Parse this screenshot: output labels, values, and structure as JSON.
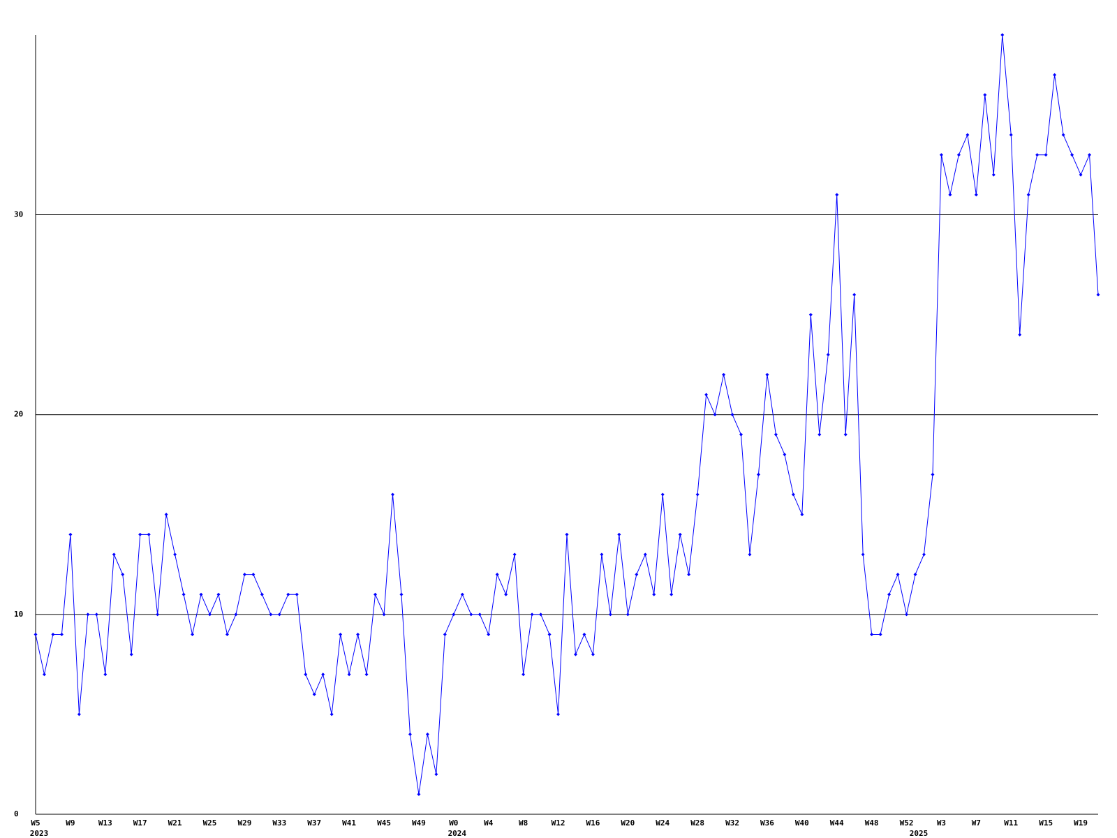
{
  "chart_data": {
    "type": "line",
    "color": "#0000ff",
    "grid": true,
    "ylim": [
      0,
      39
    ],
    "yticks": [
      0,
      10,
      20,
      30
    ],
    "categories": [
      "W5",
      null,
      null,
      null,
      "W9",
      null,
      null,
      null,
      "W13",
      null,
      null,
      null,
      "W17",
      null,
      null,
      null,
      "W21",
      null,
      null,
      null,
      "W25",
      null,
      null,
      null,
      "W29",
      null,
      null,
      null,
      "W33",
      null,
      null,
      null,
      "W37",
      null,
      null,
      null,
      "W41",
      null,
      null,
      null,
      "W45",
      null,
      null,
      null,
      "W49",
      null,
      null,
      null,
      "W0",
      null,
      null,
      null,
      "W4",
      null,
      null,
      null,
      "W8",
      null,
      null,
      null,
      "W12",
      null,
      null,
      null,
      "W16",
      null,
      null,
      null,
      "W20",
      null,
      null,
      null,
      "W24",
      null,
      null,
      null,
      "W28",
      null,
      null,
      null,
      "W32",
      null,
      null,
      null,
      "W36",
      null,
      null,
      null,
      "W40",
      null,
      null,
      null,
      "W44",
      null,
      null,
      null,
      "W48",
      null,
      null,
      null,
      "W52",
      null,
      null,
      null,
      "W3",
      null,
      null,
      null,
      "W7",
      null,
      null,
      null,
      "W11",
      null,
      null,
      null,
      "W15",
      null,
      null,
      null,
      "W19",
      null,
      null
    ],
    "category_years": [
      "2023",
      null,
      null,
      null,
      null,
      null,
      null,
      null,
      null,
      null,
      null,
      null,
      null,
      null,
      null,
      null,
      null,
      null,
      null,
      null,
      null,
      null,
      null,
      null,
      null,
      null,
      null,
      null,
      null,
      null,
      null,
      null,
      null,
      null,
      null,
      null,
      null,
      null,
      null,
      null,
      null,
      null,
      null,
      null,
      null,
      null,
      null,
      null,
      "2024",
      null,
      null,
      null,
      null,
      null,
      null,
      null,
      null,
      null,
      null,
      null,
      null,
      null,
      null,
      null,
      null,
      null,
      null,
      null,
      null,
      null,
      null,
      null,
      null,
      null,
      null,
      null,
      null,
      null,
      null,
      null,
      null,
      null,
      null,
      null,
      null,
      null,
      null,
      null,
      null,
      null,
      null,
      null,
      null,
      null,
      null,
      null,
      null,
      null,
      null,
      null,
      null,
      "2025",
      null,
      null,
      null,
      null,
      null,
      null,
      null,
      null,
      null,
      null,
      null,
      null,
      null,
      null,
      null,
      null,
      null,
      null,
      null,
      null,
      null
    ],
    "values": [
      9,
      7,
      9,
      9,
      14,
      5,
      10,
      10,
      7,
      13,
      12,
      8,
      14,
      14,
      10,
      15,
      13,
      11,
      9,
      11,
      10,
      11,
      9,
      10,
      12,
      12,
      11,
      10,
      10,
      11,
      11,
      7,
      6,
      7,
      5,
      9,
      7,
      9,
      7,
      11,
      10,
      16,
      11,
      4,
      1,
      4,
      2,
      9,
      10,
      11,
      10,
      10,
      9,
      12,
      11,
      13,
      7,
      10,
      10,
      9,
      5,
      14,
      8,
      9,
      8,
      13,
      10,
      14,
      10,
      12,
      13,
      11,
      16,
      11,
      14,
      12,
      16,
      21,
      20,
      22,
      20,
      19,
      13,
      17,
      22,
      19,
      18,
      16,
      15,
      25,
      19,
      23,
      31,
      19,
      26,
      13,
      9,
      9,
      11,
      12,
      10,
      12,
      13,
      17,
      33,
      31,
      33,
      34,
      31,
      36,
      32,
      39,
      34,
      24,
      31,
      33,
      33,
      37,
      34,
      33,
      32,
      33,
      26
    ]
  }
}
